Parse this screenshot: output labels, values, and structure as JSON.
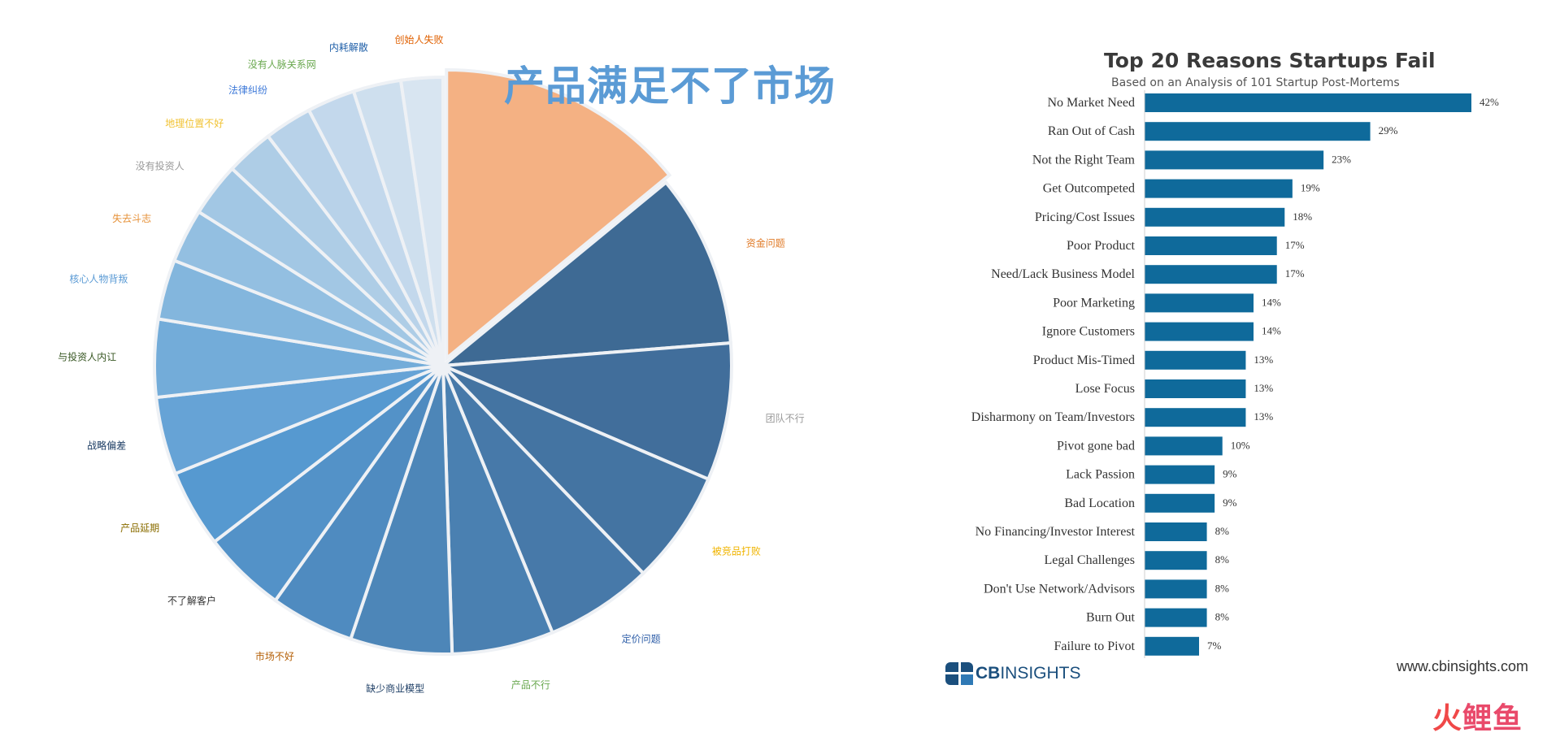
{
  "chart_data": [
    {
      "type": "pie",
      "title": "产品满足不了市场",
      "labels": [
        "产品满足不了市场",
        "资金问题",
        "团队不行",
        "被竞品打败",
        "定价问题",
        "产品不行",
        "缺少商业模型",
        "市场不好",
        "不了解客户",
        "产品延期",
        "战略偏差",
        "与投资人内讧",
        "核心人物背叛",
        "失去斗志",
        "没有投资人",
        "地理位置不好",
        "法律纠纷",
        "没有人脉关系网",
        "内耗解散",
        "创始人失败"
      ],
      "values": [
        42,
        29,
        23,
        19,
        18,
        17,
        17,
        14,
        14,
        13,
        13,
        13,
        10,
        9,
        9,
        8,
        8,
        8,
        8,
        7
      ],
      "label_colors": [
        "#333333",
        "#e07b28",
        "#9a9a9a",
        "#f0b400",
        "#2e5ea8",
        "#6aa84f",
        "#1f3f66",
        "#b45f06",
        "#333333",
        "#8a6d00",
        "#1f3f66",
        "#385723",
        "#5b9bd5",
        "#e69138",
        "#999999",
        "#f1c232",
        "#3c78d8",
        "#6aa84f",
        "#1f5fa8",
        "#e06000"
      ],
      "slice_colors": [
        "#f4b183",
        "#3e6a94",
        "#416e9b",
        "#4474a2",
        "#4779a9",
        "#4a80b1",
        "#4d86b8",
        "#4f8bc0",
        "#5392c8",
        "#5699d0",
        "#66a3d6",
        "#73acd9",
        "#83b6dd",
        "#93bfe1",
        "#a2c7e4",
        "#aecde6",
        "#b8d2e9",
        "#c3d8ec",
        "#cedfee",
        "#d8e5f1"
      ]
    },
    {
      "type": "bar",
      "orientation": "horizontal",
      "title": "Top 20 Reasons Startups Fail",
      "subtitle": "Based on an Analysis of 101 Startup Post-Mortems",
      "categories": [
        "No Market Need",
        "Ran Out of Cash",
        "Not the Right Team",
        "Get Outcompeted",
        "Pricing/Cost Issues",
        "Poor Product",
        "Need/Lack Business Model",
        "Poor Marketing",
        "Ignore Customers",
        "Product Mis-Timed",
        "Lose Focus",
        "Disharmony on Team/Investors",
        "Pivot gone bad",
        "Lack Passion",
        "Bad Location",
        "No Financing/Investor Interest",
        "Legal Challenges",
        "Don't Use Network/Advisors",
        "Burn Out",
        "Failure to Pivot"
      ],
      "values": [
        42,
        29,
        23,
        19,
        18,
        17,
        17,
        14,
        14,
        13,
        13,
        13,
        10,
        9,
        9,
        8,
        8,
        8,
        8,
        7
      ],
      "value_labels": [
        "42%",
        "29%",
        "23%",
        "19%",
        "18%",
        "17%",
        "17%",
        "14%",
        "14%",
        "13%",
        "13%",
        "13%",
        "10%",
        "9%",
        "9%",
        "8%",
        "8%",
        "8%",
        "8%",
        "7%"
      ],
      "bar_color": "#0f6a9b",
      "xlim": [
        0,
        42
      ]
    }
  ],
  "branding": {
    "logo_cb": "CB",
    "logo_insights": "INSIGHTS",
    "url": "www.cbinsights.com",
    "watermark_1": "火",
    "watermark_2": "鲤鱼"
  }
}
